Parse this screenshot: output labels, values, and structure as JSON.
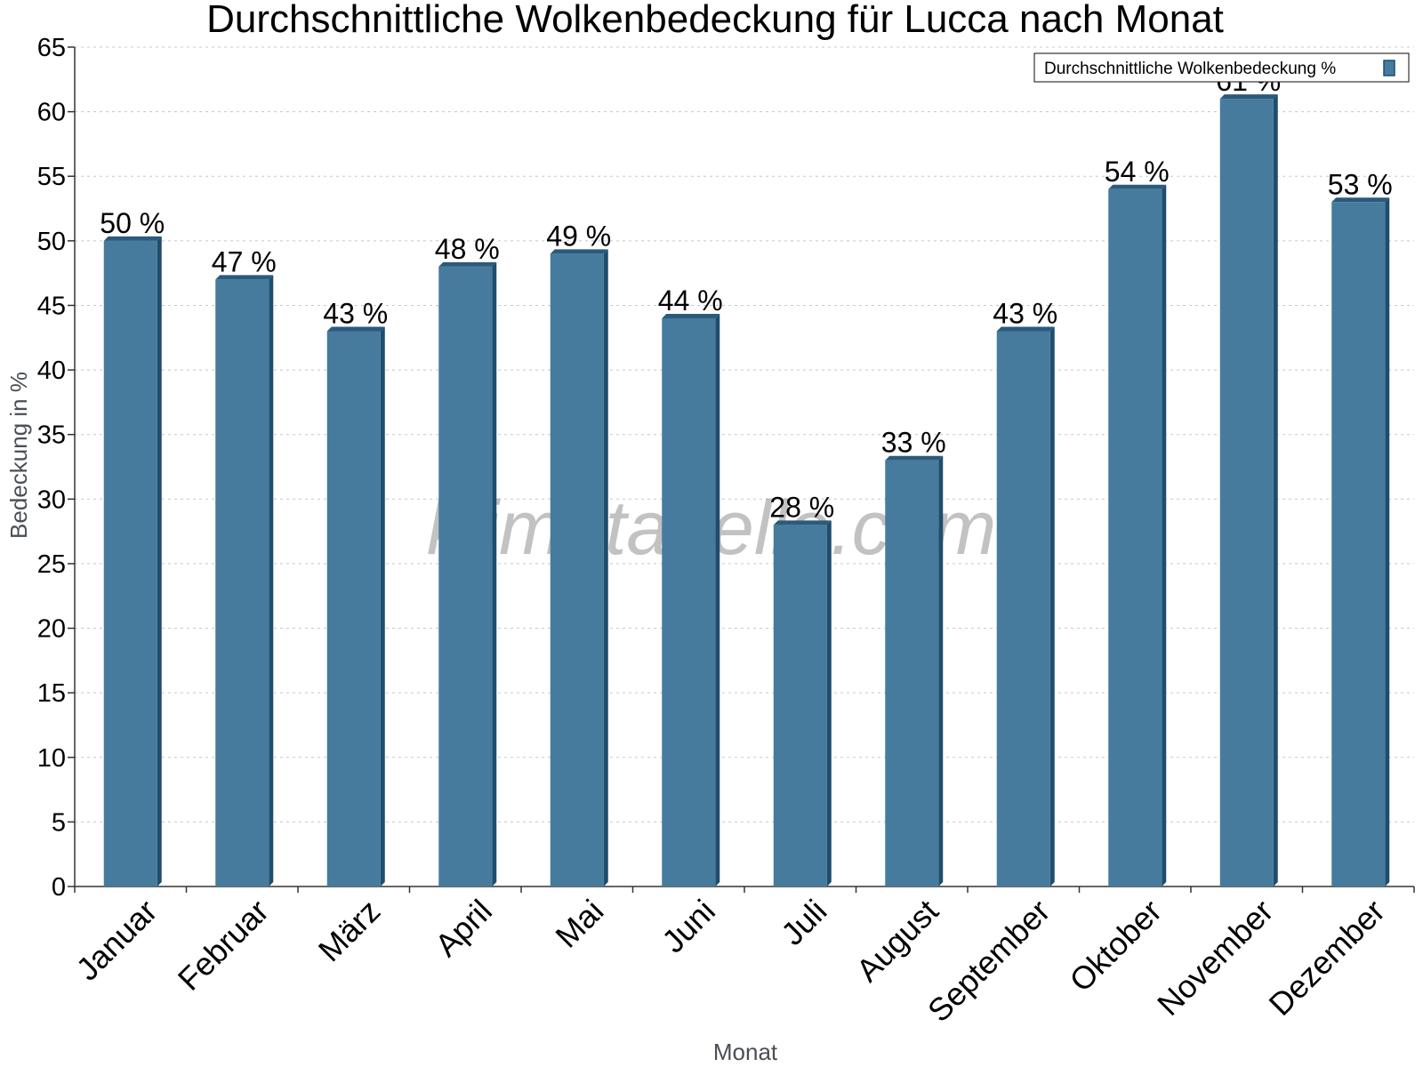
{
  "chart_data": {
    "type": "bar",
    "title": "Durchschnittliche Wolkenbedeckung für Lucca nach Monat",
    "xlabel": "Monat",
    "ylabel": "Bedeckung in %",
    "categories": [
      "Januar",
      "Februar",
      "März",
      "April",
      "Mai",
      "Juni",
      "Juli",
      "August",
      "September",
      "Oktober",
      "November",
      "Dezember"
    ],
    "series": [
      {
        "name": "Durchschnittliche Wolkenbedeckung %",
        "values": [
          50,
          47,
          43,
          48,
          49,
          44,
          28,
          33,
          43,
          54,
          61,
          53
        ],
        "color": "#467b9d"
      }
    ],
    "data_labels": [
      "50 %",
      "47 %",
      "43 %",
      "48 %",
      "49 %",
      "44 %",
      "28 %",
      "33 %",
      "43 %",
      "54 %",
      "61 %",
      "53 %"
    ],
    "ylim": [
      0,
      65
    ],
    "yticks": [
      0,
      5,
      10,
      15,
      20,
      25,
      30,
      35,
      40,
      45,
      50,
      55,
      60,
      65
    ],
    "grid": true,
    "legend": "top-right",
    "watermark": "klimatabelle.com",
    "colors": {
      "bar_front": "#467b9d",
      "bar_side": "#1f4d6d",
      "bar_top": "#2a5a7c"
    }
  }
}
